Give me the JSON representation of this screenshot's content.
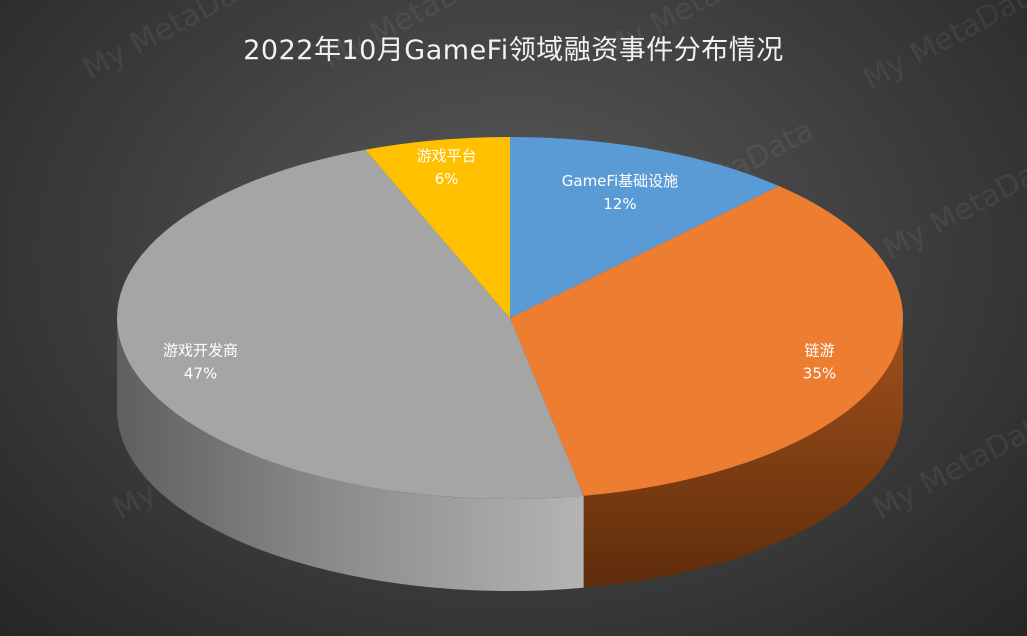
{
  "chart_data": {
    "type": "pie",
    "title": "2022年10月GameFi领域融资事件分布情况",
    "categories": [
      "GameFi基础设施",
      "链游",
      "游戏开发商",
      "游戏平台"
    ],
    "values": [
      12,
      35,
      47,
      6
    ],
    "labels": [
      "12%",
      "35%",
      "47%",
      "6%"
    ],
    "colors": [
      "#5b9bd5",
      "#ed7d31",
      "#a5a5a5",
      "#ffc000"
    ],
    "legend": "none",
    "style": "3d"
  },
  "watermark": "My MetaData"
}
